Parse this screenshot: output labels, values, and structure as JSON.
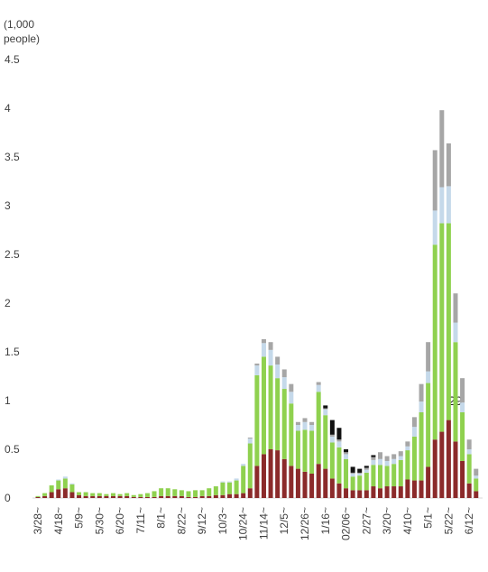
{
  "chart_data": {
    "type": "stacked-bar",
    "y_label": "(1,000 people)",
    "annotation": "29",
    "ylim": [
      0,
      4.5
    ],
    "yticks": [
      0,
      0.5,
      1,
      1.5,
      2,
      2.5,
      3,
      3.5,
      4,
      4.5
    ],
    "categories": [
      "3/28~",
      null,
      null,
      "4/18~",
      null,
      null,
      "5/9~",
      null,
      null,
      "5/30~",
      null,
      null,
      "6/20~",
      null,
      null,
      "7/11~",
      null,
      null,
      "8/1~",
      null,
      null,
      "8/22~",
      null,
      null,
      "9/12~",
      null,
      null,
      "10/3~",
      null,
      null,
      "10/24~",
      null,
      null,
      "11/14~",
      null,
      null,
      "12/5~",
      null,
      null,
      "12/26~",
      null,
      null,
      "1/16~",
      null,
      null,
      "02/06~",
      null,
      null,
      "2/27~",
      null,
      null,
      "3/20~",
      null,
      null,
      "4/10~",
      null,
      null,
      "5/1~",
      null,
      null,
      "5/22~",
      null,
      null,
      "6/12~",
      null
    ],
    "series": [
      {
        "color": "#8b2a2a",
        "values": [
          0.01,
          0.02,
          0.06,
          0.09,
          0.1,
          0.06,
          0.03,
          0.02,
          0.02,
          0.02,
          0.02,
          0.02,
          0.02,
          0.02,
          0.01,
          0.01,
          0.01,
          0.01,
          0.02,
          0.02,
          0.02,
          0.02,
          0.01,
          0.01,
          0.02,
          0.02,
          0.03,
          0.03,
          0.04,
          0.04,
          0.05,
          0.1,
          0.33,
          0.45,
          0.5,
          0.49,
          0.4,
          0.33,
          0.3,
          0.27,
          0.25,
          0.35,
          0.3,
          0.2,
          0.15,
          0.1,
          0.08,
          0.08,
          0.08,
          0.12,
          0.1,
          0.12,
          0.12,
          0.12,
          0.19,
          0.18,
          0.18,
          0.32,
          0.6,
          0.68,
          0.8,
          0.58,
          0.38,
          0.15,
          0.07
        ]
      },
      {
        "color": "#8fd14f",
        "values": [
          0.01,
          0.03,
          0.07,
          0.09,
          0.1,
          0.08,
          0.03,
          0.04,
          0.03,
          0.03,
          0.02,
          0.03,
          0.02,
          0.03,
          0.02,
          0.03,
          0.04,
          0.06,
          0.08,
          0.08,
          0.07,
          0.06,
          0.06,
          0.07,
          0.06,
          0.08,
          0.09,
          0.13,
          0.12,
          0.14,
          0.28,
          0.46,
          0.93,
          1.0,
          0.86,
          0.74,
          0.72,
          0.64,
          0.39,
          0.43,
          0.44,
          0.74,
          0.55,
          0.37,
          0.37,
          0.3,
          0.14,
          0.15,
          0.18,
          0.22,
          0.24,
          0.21,
          0.23,
          0.27,
          0.3,
          0.45,
          0.7,
          0.86,
          2.0,
          2.14,
          2.02,
          1.02,
          0.5,
          0.3,
          0.13
        ]
      },
      {
        "color": "#c5d9ea",
        "values": [
          0,
          0,
          0,
          0.01,
          0.02,
          0.01,
          0,
          0,
          0,
          0,
          0,
          0,
          0,
          0,
          0,
          0,
          0,
          0,
          0,
          0,
          0,
          0,
          0,
          0,
          0,
          0,
          0,
          0.01,
          0.01,
          0.02,
          0.02,
          0.05,
          0.1,
          0.14,
          0.16,
          0.14,
          0.12,
          0.12,
          0.06,
          0.08,
          0.06,
          0.07,
          0.06,
          0.06,
          0.06,
          0.05,
          0.03,
          0.02,
          0.03,
          0.05,
          0.06,
          0.05,
          0.05,
          0.04,
          0.04,
          0.1,
          0.11,
          0.12,
          0.35,
          0.37,
          0.38,
          0.2,
          0.1,
          0.05,
          0.03
        ]
      },
      {
        "color": "#a6a6a6",
        "values": [
          0,
          0,
          0,
          0,
          0,
          0,
          0,
          0,
          0,
          0,
          0,
          0,
          0,
          0,
          0,
          0,
          0,
          0,
          0,
          0,
          0,
          0,
          0,
          0,
          0,
          0,
          0,
          0,
          0,
          0,
          0,
          0.01,
          0.02,
          0.04,
          0.08,
          0.08,
          0.08,
          0.08,
          0.03,
          0.04,
          0.03,
          0.03,
          0.01,
          0.02,
          0.02,
          0.02,
          0.01,
          0.01,
          0.02,
          0.03,
          0.07,
          0.05,
          0.05,
          0.05,
          0.05,
          0.1,
          0.18,
          0.3,
          0.62,
          0.79,
          0.44,
          0.3,
          0.25,
          0.1,
          0.07
        ]
      },
      {
        "color": "#111111",
        "values": [
          0,
          0,
          0,
          0,
          0,
          0,
          0,
          0,
          0,
          0,
          0,
          0,
          0,
          0,
          0,
          0,
          0,
          0,
          0,
          0,
          0,
          0,
          0,
          0,
          0,
          0,
          0,
          0,
          0,
          0,
          0,
          0,
          0,
          0,
          0,
          0,
          0,
          0,
          0,
          0,
          0,
          0,
          0.03,
          0.15,
          0.12,
          0.03,
          0.06,
          0.04,
          0.02,
          0.02,
          0,
          0,
          0,
          0,
          0,
          0,
          0,
          0,
          0,
          0,
          0,
          0,
          0,
          0,
          0
        ]
      }
    ]
  }
}
